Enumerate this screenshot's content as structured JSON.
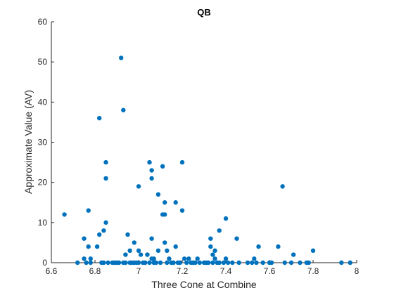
{
  "chart_data": {
    "type": "scatter",
    "title": "QB",
    "xlabel": "Three Cone at Combine",
    "ylabel": "Approximate Value (AV)",
    "xlim": [
      6.6,
      8
    ],
    "ylim": [
      0,
      60
    ],
    "xticks": [
      "6.6",
      "6.8",
      "7",
      "7.2",
      "7.4",
      "7.6",
      "7.8",
      "8"
    ],
    "yticks": [
      "0",
      "10",
      "20",
      "30",
      "40",
      "50",
      "60"
    ],
    "grid": false,
    "marker_color": "#0072BD",
    "points": [
      [
        6.66,
        12
      ],
      [
        6.72,
        0
      ],
      [
        6.75,
        6
      ],
      [
        6.75,
        1
      ],
      [
        6.76,
        0
      ],
      [
        6.77,
        13
      ],
      [
        6.77,
        4
      ],
      [
        6.78,
        1
      ],
      [
        6.78,
        0
      ],
      [
        6.81,
        4
      ],
      [
        6.82,
        36
      ],
      [
        6.82,
        7
      ],
      [
        6.83,
        0
      ],
      [
        6.84,
        0
      ],
      [
        6.84,
        8
      ],
      [
        6.85,
        25
      ],
      [
        6.85,
        21
      ],
      [
        6.85,
        10
      ],
      [
        6.86,
        0
      ],
      [
        6.88,
        0
      ],
      [
        6.89,
        0
      ],
      [
        6.9,
        0
      ],
      [
        6.91,
        0
      ],
      [
        6.92,
        51
      ],
      [
        6.93,
        38
      ],
      [
        6.93,
        0
      ],
      [
        6.94,
        2
      ],
      [
        6.94,
        0
      ],
      [
        6.95,
        7
      ],
      [
        6.96,
        3
      ],
      [
        6.96,
        0
      ],
      [
        6.97,
        0
      ],
      [
        6.98,
        5
      ],
      [
        6.98,
        0
      ],
      [
        6.99,
        0
      ],
      [
        7.0,
        19
      ],
      [
        7.0,
        3
      ],
      [
        7.0,
        0
      ],
      [
        7.01,
        2
      ],
      [
        7.02,
        0
      ],
      [
        7.03,
        0
      ],
      [
        7.04,
        2
      ],
      [
        7.05,
        25
      ],
      [
        7.05,
        0
      ],
      [
        7.06,
        23
      ],
      [
        7.06,
        21
      ],
      [
        7.06,
        6
      ],
      [
        7.06,
        1
      ],
      [
        7.07,
        0
      ],
      [
        7.07,
        1
      ],
      [
        7.08,
        0
      ],
      [
        7.09,
        17
      ],
      [
        7.09,
        3
      ],
      [
        7.1,
        0
      ],
      [
        7.11,
        24
      ],
      [
        7.11,
        12
      ],
      [
        7.12,
        15
      ],
      [
        7.12,
        12
      ],
      [
        7.12,
        5
      ],
      [
        7.13,
        3
      ],
      [
        7.13,
        0
      ],
      [
        7.14,
        1
      ],
      [
        7.15,
        0
      ],
      [
        7.16,
        0
      ],
      [
        7.17,
        4
      ],
      [
        7.17,
        15
      ],
      [
        7.18,
        0
      ],
      [
        7.19,
        0
      ],
      [
        7.2,
        25
      ],
      [
        7.2,
        13
      ],
      [
        7.21,
        1
      ],
      [
        7.22,
        0
      ],
      [
        7.23,
        1
      ],
      [
        7.24,
        0
      ],
      [
        7.25,
        0
      ],
      [
        7.26,
        0
      ],
      [
        7.27,
        1
      ],
      [
        7.28,
        0
      ],
      [
        7.3,
        0
      ],
      [
        7.31,
        0
      ],
      [
        7.32,
        0
      ],
      [
        7.33,
        6
      ],
      [
        7.33,
        4
      ],
      [
        7.34,
        2
      ],
      [
        7.34,
        0
      ],
      [
        7.35,
        3
      ],
      [
        7.35,
        1
      ],
      [
        7.36,
        0
      ],
      [
        7.37,
        8
      ],
      [
        7.37,
        0
      ],
      [
        7.39,
        0
      ],
      [
        7.4,
        11
      ],
      [
        7.4,
        1
      ],
      [
        7.41,
        0
      ],
      [
        7.43,
        0
      ],
      [
        7.45,
        6
      ],
      [
        7.46,
        0
      ],
      [
        7.5,
        0
      ],
      [
        7.52,
        0
      ],
      [
        7.53,
        1
      ],
      [
        7.54,
        0
      ],
      [
        7.55,
        4
      ],
      [
        7.57,
        0
      ],
      [
        7.6,
        0
      ],
      [
        7.61,
        0
      ],
      [
        7.64,
        4
      ],
      [
        7.66,
        19
      ],
      [
        7.67,
        0
      ],
      [
        7.7,
        0
      ],
      [
        7.71,
        2
      ],
      [
        7.74,
        0
      ],
      [
        7.77,
        0
      ],
      [
        7.78,
        0
      ],
      [
        7.8,
        3
      ],
      [
        7.93,
        0
      ],
      [
        7.97,
        0
      ]
    ]
  }
}
